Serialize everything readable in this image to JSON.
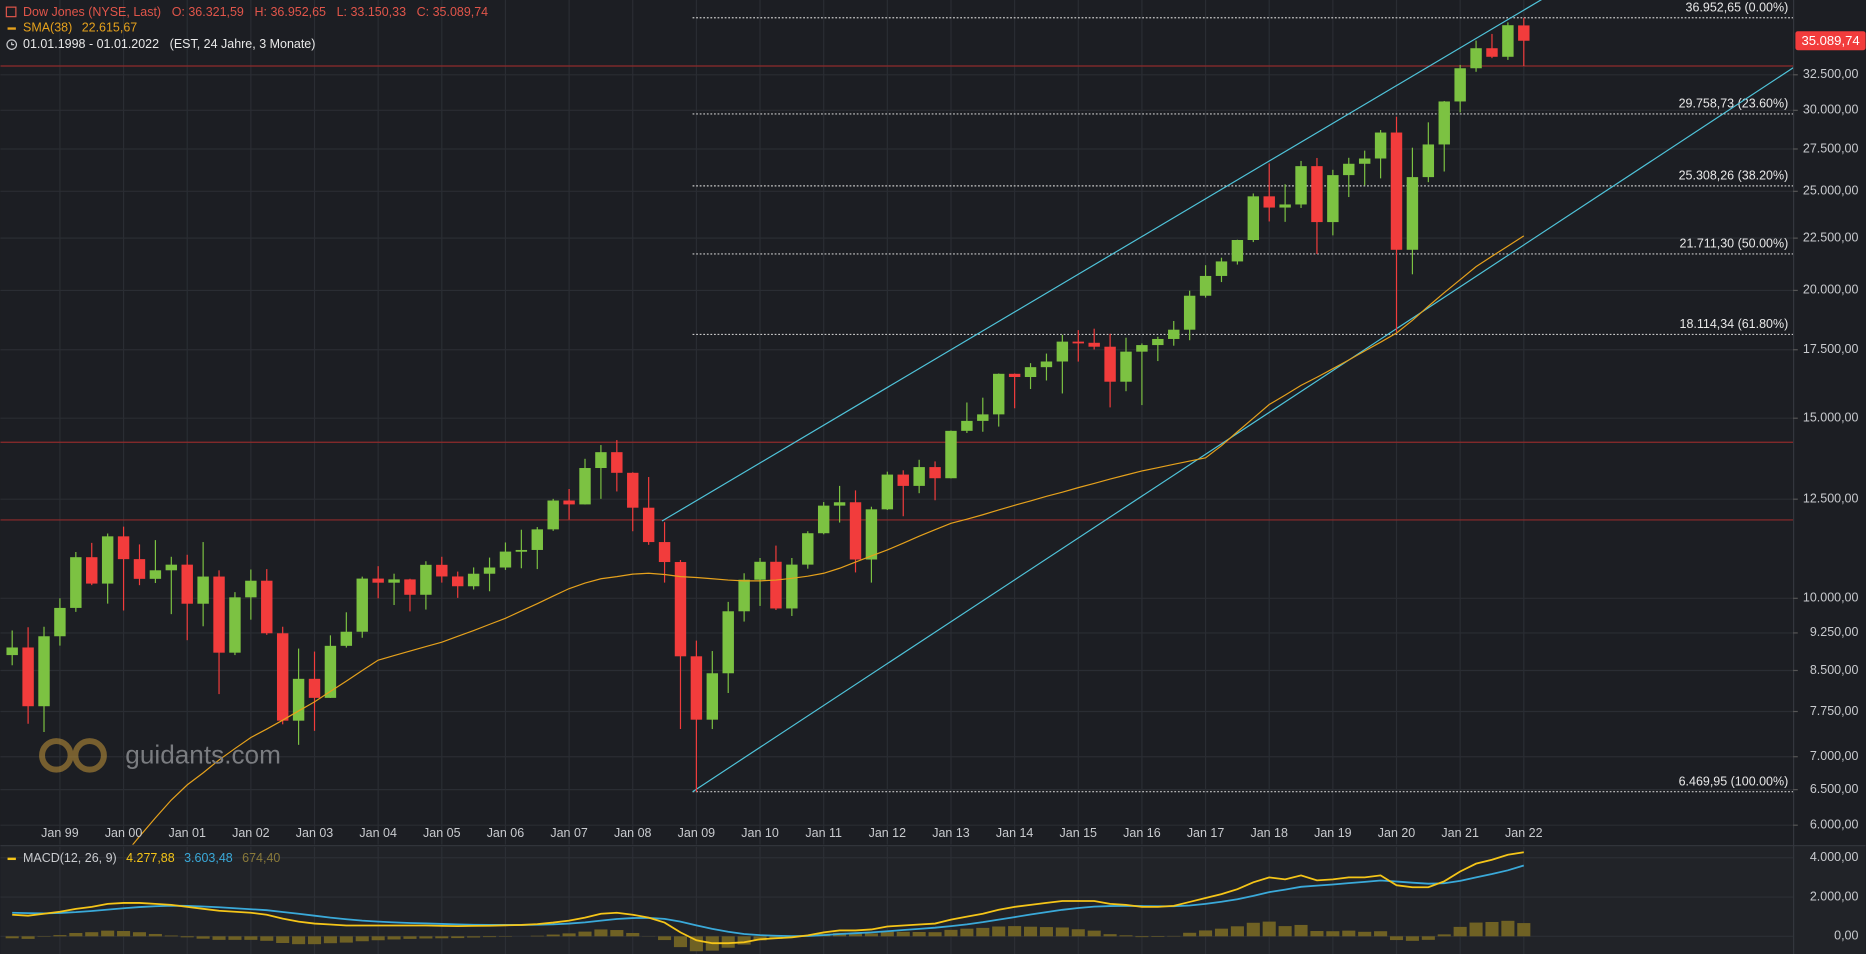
{
  "chart_data": {
    "type": "candlestick",
    "title": "Dow Jones (NYSE, Last)",
    "ohlc_labels": [
      "O: 36.321,59",
      "H: 36.952,65",
      "L: 33.150,33",
      "C: 35.089,74"
    ],
    "period": "01.01.1998 - 01.01.2022",
    "period_note": "(EST, 24 Jahre, 3 Monate)",
    "watermark": "guidants.com",
    "log_scale": true,
    "grid": true,
    "up_color": "#7cc242",
    "down_color": "#f23c3c",
    "xlim": [
      1998.065,
      2026.23
    ],
    "xticks": [
      {
        "value": 1999,
        "label": "Jan 99"
      },
      {
        "value": 2000,
        "label": "Jan 00"
      },
      {
        "value": 2001,
        "label": "Jan 01"
      },
      {
        "value": 2002,
        "label": "Jan 02"
      },
      {
        "value": 2003,
        "label": "Jan 03"
      },
      {
        "value": 2004,
        "label": "Jan 04"
      },
      {
        "value": 2005,
        "label": "Jan 05"
      },
      {
        "value": 2006,
        "label": "Jan 06"
      },
      {
        "value": 2007,
        "label": "Jan 07"
      },
      {
        "value": 2008,
        "label": "Jan 08"
      },
      {
        "value": 2009,
        "label": "Jan 09"
      },
      {
        "value": 2010,
        "label": "Jan 10"
      },
      {
        "value": 2011,
        "label": "Jan 11"
      },
      {
        "value": 2012,
        "label": "Jan 12"
      },
      {
        "value": 2013,
        "label": "Jan 13"
      },
      {
        "value": 2014,
        "label": "Jan 14"
      },
      {
        "value": 2015,
        "label": "Jan 15"
      },
      {
        "value": 2016,
        "label": "Jan 16"
      },
      {
        "value": 2017,
        "label": "Jan 17"
      },
      {
        "value": 2018,
        "label": "Jan 18"
      },
      {
        "value": 2019,
        "label": "Jan 19"
      },
      {
        "value": 2020,
        "label": "Jan 20"
      },
      {
        "value": 2021,
        "label": "Jan 21"
      },
      {
        "value": 2022,
        "label": "Jan 22"
      }
    ],
    "ylim": [
      5744,
      38460
    ],
    "yticks": [
      {
        "value": 6000,
        "label": "6.000,00"
      },
      {
        "value": 6500,
        "label": "6.500,00"
      },
      {
        "value": 7000,
        "label": "7.000,00"
      },
      {
        "value": 7750,
        "label": "7.750,00"
      },
      {
        "value": 8500,
        "label": "8.500,00"
      },
      {
        "value": 9250,
        "label": "9.250,00"
      },
      {
        "value": 10000,
        "label": "10.000,00"
      },
      {
        "value": 12500,
        "label": "12.500,00"
      },
      {
        "value": 15000,
        "label": "15.000,00"
      },
      {
        "value": 17500,
        "label": "17.500,00"
      },
      {
        "value": 20000,
        "label": "20.000,00"
      },
      {
        "value": 22500,
        "label": "22.500,00"
      },
      {
        "value": 25000,
        "label": "25.000,00"
      },
      {
        "value": 27500,
        "label": "27.500,00"
      },
      {
        "value": 30000,
        "label": "30.000,00"
      },
      {
        "value": 32500,
        "label": "32.500,00"
      }
    ],
    "x": [
      1998.25,
      1998.5,
      1998.75,
      1999,
      1999.25,
      1999.5,
      1999.75,
      2000,
      2000.25,
      2000.5,
      2000.75,
      2001,
      2001.25,
      2001.5,
      2001.75,
      2002,
      2002.25,
      2002.5,
      2002.75,
      2003,
      2003.25,
      2003.5,
      2003.75,
      2004,
      2004.25,
      2004.5,
      2004.75,
      2005,
      2005.25,
      2005.5,
      2005.75,
      2006,
      2006.25,
      2006.5,
      2006.75,
      2007,
      2007.25,
      2007.5,
      2007.75,
      2008,
      2008.25,
      2008.5,
      2008.75,
      2009,
      2009.25,
      2009.5,
      2009.75,
      2010,
      2010.25,
      2010.5,
      2010.75,
      2011,
      2011.25,
      2011.5,
      2011.75,
      2012,
      2012.25,
      2012.5,
      2012.75,
      2013,
      2013.25,
      2013.5,
      2013.75,
      2014,
      2014.25,
      2014.5,
      2014.75,
      2015,
      2015.25,
      2015.5,
      2015.75,
      2016,
      2016.25,
      2016.5,
      2016.75,
      2017,
      2017.25,
      2017.5,
      2017.75,
      2018,
      2018.25,
      2018.5,
      2018.75,
      2019,
      2019.25,
      2019.5,
      2019.75,
      2020,
      2020.25,
      2020.5,
      2020.75,
      2021,
      2021.25,
      2021.5,
      2021.75,
      2022
    ],
    "open": [
      8800,
      8952,
      7843,
      9181,
      9786,
      10970,
      10337,
      11497,
      10922,
      10448,
      10651,
      10787,
      9879,
      10502,
      8848,
      10022,
      10404,
      9243,
      7592,
      8342,
      7992,
      8985,
      9275,
      10454,
      10358,
      10435,
      10080,
      10783,
      10504,
      10275,
      10569,
      10718,
      11109,
      11150,
      11679,
      12463,
      12354,
      13409,
      13896,
      13265,
      12263,
      11350,
      10851,
      8776,
      7609,
      8447,
      9712,
      10428,
      10857,
      9774,
      10788,
      11578,
      12320,
      12414,
      10913,
      12218,
      13212,
      12880,
      13437,
      13104,
      14579,
      14910,
      15130,
      16577,
      16458,
      16827,
      17043,
      17823,
      17776,
      17620,
      16285,
      17425,
      17685,
      17930,
      18308,
      19763,
      20663,
      21350,
      22405,
      24719,
      24103,
      24271,
      26458,
      23327,
      25929,
      26600,
      26917,
      28538,
      21917,
      25813,
      27782,
      30606,
      32982,
      34503,
      33844,
      36321.59
    ],
    "high": [
      9300,
      9370,
      9380,
      10000,
      11100,
      11330,
      11570,
      11750,
      11290,
      11400,
      10980,
      11030,
      11350,
      10650,
      10140,
      10670,
      10680,
      9380,
      8930,
      8870,
      9200,
      9690,
      10500,
      10750,
      10570,
      10450,
      10870,
      10980,
      10620,
      10720,
      10960,
      11340,
      11670,
      11740,
      12510,
      12790,
      13690,
      14120,
      14280,
      13280,
      13140,
      11870,
      10900,
      9090,
      8880,
      9920,
      10580,
      10950,
      11260,
      10950,
      11630,
      12420,
      12880,
      12750,
      12290,
      13300,
      13340,
      13660,
      13610,
      14590,
      15540,
      15710,
      16590,
      16590,
      16980,
      17350,
      18100,
      18290,
      18350,
      18140,
      17980,
      17750,
      18020,
      18670,
      19990,
      21170,
      21530,
      22420,
      24880,
      26620,
      25400,
      26770,
      26950,
      26240,
      26960,
      27400,
      28700,
      29570,
      27580,
      29200,
      30640,
      33230,
      35100,
      35630,
      36570,
      36952.65
    ],
    "low": [
      8600,
      7540,
      7400,
      8990,
      9700,
      10300,
      9880,
      9730,
      10300,
      10350,
      9650,
      9100,
      9390,
      8060,
      8800,
      9530,
      9210,
      7530,
      7190,
      7420,
      7990,
      8950,
      9150,
      10000,
      9850,
      9710,
      9750,
      10360,
      10010,
      10200,
      10160,
      10660,
      10700,
      10680,
      11640,
      11940,
      12350,
      12510,
      12720,
      11630,
      11280,
      10360,
      7450,
      6469.95,
      7450,
      8080,
      9490,
      9830,
      9740,
      9610,
      10690,
      11550,
      11860,
      10600,
      10360,
      12200,
      12030,
      12670,
      12470,
      13100,
      14510,
      14550,
      14720,
      15340,
      16020,
      16330,
      15860,
      17040,
      17510,
      15370,
      15940,
      15450,
      17060,
      17660,
      17880,
      19680,
      20380,
      21200,
      22300,
      23360,
      23340,
      24080,
      21710,
      22640,
      24680,
      25340,
      25740,
      18210,
      20740,
      25520,
      26140,
      29860,
      32720,
      33740,
      33610,
      33150.33
    ],
    "close": [
      8952,
      7843,
      9181,
      9786,
      10970,
      10337,
      11497,
      10922,
      10448,
      10651,
      10787,
      9879,
      10502,
      8848,
      10022,
      10404,
      9243,
      7592,
      8342,
      7992,
      8985,
      9275,
      10454,
      10358,
      10435,
      10080,
      10783,
      10504,
      10275,
      10569,
      10718,
      11109,
      11150,
      11679,
      12463,
      12354,
      13409,
      13896,
      13265,
      12263,
      11350,
      10851,
      8776,
      7609,
      8447,
      9712,
      10428,
      10857,
      9774,
      10788,
      11578,
      12320,
      12414,
      10913,
      12218,
      13212,
      12880,
      13437,
      13104,
      14579,
      14910,
      15130,
      16577,
      16458,
      16827,
      17043,
      17823,
      17776,
      17620,
      16285,
      17425,
      17685,
      17930,
      18308,
      19763,
      20663,
      21350,
      22405,
      24719,
      24103,
      24271,
      26458,
      23327,
      25929,
      26600,
      26917,
      28538,
      21917,
      25813,
      27782,
      30606,
      32982,
      34503,
      33844,
      36338,
      35089.74
    ],
    "last_price": {
      "value": 35089.74,
      "label": "35.089,74"
    },
    "sma": {
      "label": "SMA(38)",
      "value_label": "22.615,67",
      "color": "#e5a11c",
      "values": [
        null,
        null,
        null,
        null,
        null,
        null,
        null,
        5600,
        5850,
        6100,
        6350,
        6570,
        6750,
        6950,
        7130,
        7310,
        7450,
        7600,
        7760,
        7920,
        8110,
        8300,
        8500,
        8700,
        8790,
        8880,
        8970,
        9060,
        9180,
        9300,
        9430,
        9560,
        9720,
        9880,
        10050,
        10220,
        10350,
        10450,
        10500,
        10560,
        10580,
        10550,
        10500,
        10480,
        10450,
        10420,
        10400,
        10400,
        10420,
        10460,
        10510,
        10580,
        10700,
        10850,
        11000,
        11150,
        11320,
        11500,
        11670,
        11840,
        11950,
        12070,
        12200,
        12330,
        12450,
        12580,
        12700,
        12830,
        12950,
        13080,
        13200,
        13320,
        13420,
        13520,
        13620,
        13720,
        14100,
        14550,
        15000,
        15470,
        15800,
        16150,
        16450,
        16770,
        17100,
        17450,
        17800,
        18170,
        18700,
        19300,
        19900,
        20490,
        21100,
        21600,
        22100,
        22615.67
      ]
    },
    "fibonacci": {
      "x": 2008.94,
      "color": "#c8c8c8",
      "levels": [
        {
          "value": 36952.65,
          "label": "36.952,65 (0.00%)"
        },
        {
          "value": 29758.73,
          "label": "29.758,73 (23.60%)"
        },
        {
          "value": 25308.26,
          "label": "25.308,26 (38.20%)"
        },
        {
          "value": 21711.3,
          "label": "21.711,30 (50.00%)"
        },
        {
          "value": 18114.34,
          "label": "18.114,34 (61.80%)"
        },
        {
          "value": 6469.95,
          "label": "6.469,95 (100.00%)"
        }
      ]
    },
    "channel_lines": {
      "color": "#4fc3d9",
      "lines": [
        {
          "x": [
            2008.46,
            2021.49
          ],
          "y": [
            11900,
            36000
          ]
        },
        {
          "x": [
            2008.94,
            2026.23
          ],
          "y": [
            6469.95,
            33010
          ]
        }
      ]
    },
    "hlines": {
      "color": "#8e2b2b",
      "values": [
        33150.33,
        14210,
        11930
      ]
    },
    "macd": {
      "title": "MACD(12, 26, 9)",
      "ylim": [
        -900,
        4550
      ],
      "yticks": [
        {
          "value": 0,
          "label": "0,00"
        },
        {
          "value": 2000,
          "label": "2.000,00"
        },
        {
          "value": 4000,
          "label": "4.000,00"
        }
      ],
      "macd_line": {
        "value_label": "4.277,88",
        "color": "#f5c518",
        "values": [
          1100,
          1050,
          1150,
          1250,
          1400,
          1500,
          1650,
          1700,
          1700,
          1650,
          1600,
          1500,
          1400,
          1300,
          1250,
          1200,
          1100,
          900,
          750,
          650,
          600,
          550,
          550,
          550,
          550,
          550,
          550,
          530,
          520,
          530,
          540,
          560,
          580,
          620,
          700,
          800,
          950,
          1150,
          1200,
          1100,
          950,
          700,
          200,
          -200,
          -350,
          -350,
          -300,
          -150,
          -100,
          -50,
          50,
          200,
          300,
          300,
          350,
          500,
          550,
          600,
          650,
          850,
          1000,
          1150,
          1350,
          1500,
          1600,
          1700,
          1800,
          1800,
          1800,
          1650,
          1600,
          1500,
          1500,
          1550,
          1750,
          1950,
          2150,
          2400,
          2750,
          3000,
          2900,
          3100,
          2850,
          2900,
          3000,
          3000,
          3100,
          2600,
          2500,
          2500,
          2800,
          3300,
          3700,
          3900,
          4150,
          4277.88
        ]
      },
      "signal_line": {
        "value_label": "3.603,48",
        "color": "#3aa9d9",
        "values": [
          1200,
          1180,
          1170,
          1190,
          1230,
          1290,
          1360,
          1430,
          1490,
          1530,
          1560,
          1550,
          1520,
          1480,
          1430,
          1380,
          1330,
          1240,
          1150,
          1050,
          950,
          870,
          800,
          750,
          710,
          680,
          660,
          630,
          610,
          590,
          580,
          580,
          580,
          590,
          610,
          650,
          710,
          800,
          880,
          930,
          940,
          890,
          750,
          560,
          380,
          230,
          120,
          60,
          30,
          10,
          20,
          60,
          120,
          160,
          200,
          260,
          320,
          380,
          440,
          520,
          610,
          720,
          850,
          980,
          1110,
          1230,
          1350,
          1440,
          1510,
          1540,
          1550,
          1540,
          1530,
          1530,
          1570,
          1650,
          1760,
          1890,
          2060,
          2250,
          2380,
          2520,
          2580,
          2640,
          2710,
          2770,
          2840,
          2790,
          2730,
          2680,
          2700,
          2820,
          3000,
          3170,
          3360,
          3603.48
        ]
      },
      "histogram": {
        "value_label": "674,40",
        "color": "#6f6124",
        "values": [
          -100,
          -130,
          -20,
          60,
          170,
          210,
          290,
          270,
          210,
          120,
          40,
          -50,
          -120,
          -180,
          -180,
          -180,
          -230,
          -340,
          -400,
          -400,
          -350,
          -320,
          -250,
          -200,
          -160,
          -130,
          -110,
          -100,
          -90,
          -60,
          -40,
          -20,
          0,
          30,
          90,
          150,
          240,
          350,
          320,
          170,
          10,
          -190,
          -550,
          -760,
          -730,
          -580,
          -420,
          -210,
          -130,
          -60,
          30,
          140,
          180,
          140,
          150,
          240,
          230,
          220,
          210,
          330,
          390,
          430,
          500,
          520,
          490,
          470,
          450,
          360,
          290,
          110,
          50,
          -40,
          -30,
          20,
          180,
          300,
          390,
          510,
          690,
          750,
          520,
          580,
          270,
          260,
          290,
          230,
          260,
          -190,
          -230,
          -180,
          100,
          480,
          700,
          730,
          790,
          674.4
        ]
      }
    }
  }
}
